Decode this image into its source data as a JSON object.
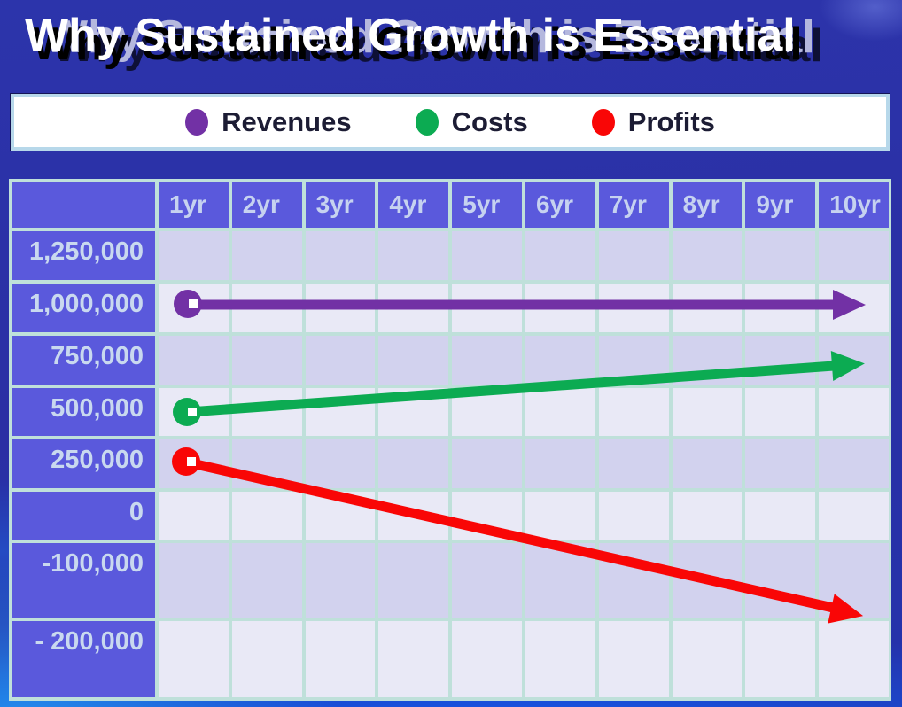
{
  "slide": {
    "title": "Why Sustained Growth is Essential"
  },
  "legend": {
    "items": [
      {
        "label": "Revenues",
        "color": "#7231a5"
      },
      {
        "label": "Costs",
        "color": "#0cab52"
      },
      {
        "label": "Profits",
        "color": "#f90606"
      }
    ]
  },
  "table": {
    "corner_label": "",
    "columns": [
      "1yr",
      "2yr",
      "3yr",
      "4yr",
      "5yr",
      "6yr",
      "7yr",
      "8yr",
      "9yr",
      "10yr"
    ],
    "row_labels": [
      "1,250,000",
      "1,000,000",
      "750,000",
      "500,000",
      "250,000",
      "0",
      "-100,000",
      "- 200,000"
    ]
  },
  "chart_data": {
    "type": "line",
    "title": "Why Sustained Growth is Essential",
    "categories": [
      "1yr",
      "2yr",
      "3yr",
      "4yr",
      "5yr",
      "6yr",
      "7yr",
      "8yr",
      "9yr",
      "10yr"
    ],
    "y_ticks": [
      1250000,
      1000000,
      750000,
      500000,
      250000,
      0,
      -100000,
      -200000
    ],
    "ylim": [
      -200000,
      1250000
    ],
    "grid": true,
    "legend_position": "top",
    "series": [
      {
        "name": "Revenues",
        "color": "#7231a5",
        "shape": "straight-arrow",
        "from": 1000000,
        "to": 1000000
      },
      {
        "name": "Costs",
        "color": "#0cab52",
        "shape": "straight-arrow",
        "from": 500000,
        "to": 750000
      },
      {
        "name": "Profits",
        "color": "#f90606",
        "shape": "straight-arrow",
        "from": 250000,
        "to": -150000,
        "note": "arrow tip ends between the -100,000 and -200,000 gridlines; value approximate"
      }
    ]
  }
}
